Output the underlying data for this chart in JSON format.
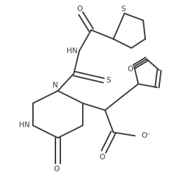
{
  "bg_color": "#ffffff",
  "line_color": "#3a3a3a",
  "line_width": 1.4,
  "figsize": [
    2.48,
    2.59
  ],
  "dpi": 100,
  "xlim": [
    0,
    248
  ],
  "ylim": [
    0,
    259
  ]
}
